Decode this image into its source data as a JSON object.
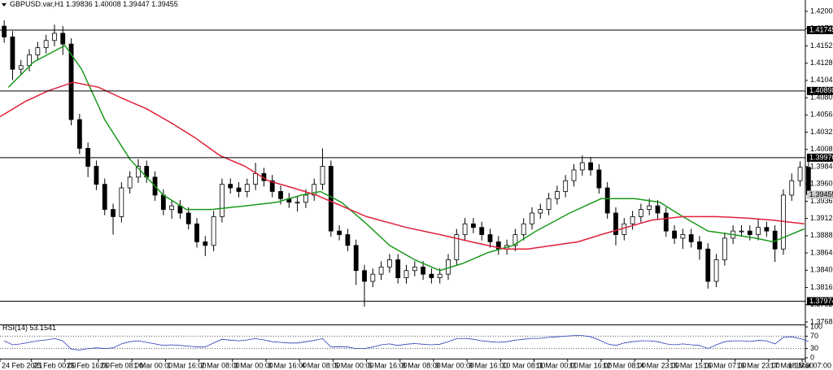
{
  "chart_data": {
    "type": "candlestick",
    "symbol": "GBPUSD.var,H1",
    "xlim": [
      -2,
      382.5
    ],
    "xticks": [
      {
        "value": -2,
        "label": "24 Feb 2021"
      },
      {
        "value": 13,
        "label": "25 Feb 00:00"
      },
      {
        "value": 29,
        "label": "25 Feb 16:00"
      },
      {
        "value": 45,
        "label": "26 Feb 08:00"
      },
      {
        "value": 61,
        "label": "1 Mar 00:00"
      },
      {
        "value": 77,
        "label": "1 Mar 16:00"
      },
      {
        "value": 93,
        "label": "2 Mar 08:00"
      },
      {
        "value": 109,
        "label": "3 Mar 00:00"
      },
      {
        "value": 125,
        "label": "3 Mar 16:00"
      },
      {
        "value": 141,
        "label": "4 Mar 08:00"
      },
      {
        "value": 157,
        "label": "5 Mar 00:00"
      },
      {
        "value": 173,
        "label": "5 Mar 16:00"
      },
      {
        "value": 189,
        "label": "8 Mar 08:00"
      },
      {
        "value": 205,
        "label": "9 Mar 00:00"
      },
      {
        "value": 221,
        "label": "9 Mar 16:00"
      },
      {
        "value": 237,
        "label": "10 Mar 08:00"
      },
      {
        "value": 253,
        "label": "11 Mar 00:00"
      },
      {
        "value": 269,
        "label": "11 Mar 16:00"
      },
      {
        "value": 285,
        "label": "12 Mar 08:00"
      },
      {
        "value": 301,
        "label": "14 Mar 23:00"
      },
      {
        "value": 317,
        "label": "15 Mar 15:00"
      },
      {
        "value": 333,
        "label": "16 Mar 07:00"
      },
      {
        "value": 349,
        "label": "16 Mar 23:00"
      },
      {
        "value": 365,
        "label": "17 Mar 15:00"
      },
      {
        "value": 381,
        "label": "18 Mar 07:00"
      }
    ],
    "ylim": [
      1.37662,
      1.42163
    ],
    "yticks": [
      1.42005,
      1.41765,
      1.41525,
      1.41285,
      1.41045,
      1.40805,
      1.40565,
      1.40325,
      1.40085,
      1.39845,
      1.39605,
      1.39365,
      1.39125,
      1.38885,
      1.38645,
      1.38405,
      1.38165,
      1.37925,
      1.37685
    ],
    "x": [
      0,
      4,
      8,
      12,
      16,
      20,
      24,
      28,
      32,
      36,
      40,
      44,
      48,
      52,
      56,
      60,
      64,
      68,
      72,
      76,
      80,
      84,
      88,
      92,
      96,
      100,
      104,
      108,
      112,
      116,
      120,
      124,
      128,
      132,
      136,
      140,
      144,
      148,
      152,
      156,
      160,
      164,
      168,
      172,
      176,
      180,
      184,
      188,
      192,
      196,
      200,
      204,
      208,
      212,
      216,
      220,
      224,
      228,
      232,
      236,
      240,
      244,
      248,
      252,
      256,
      260,
      264,
      268,
      272,
      276,
      280,
      284,
      288,
      292,
      296,
      300,
      304,
      308,
      312,
      316,
      320,
      324,
      328,
      332,
      336,
      340,
      344,
      348,
      352,
      356,
      360,
      364,
      368,
      372,
      376,
      380,
      384
    ],
    "open": [
      1.418,
      1.4165,
      1.412,
      1.4125,
      1.414,
      1.415,
      1.416,
      1.417,
      1.4155,
      1.405,
      1.401,
      1.3985,
      1.396,
      1.3925,
      1.3915,
      1.3955,
      1.397,
      1.3985,
      1.397,
      1.3945,
      1.3925,
      1.393,
      1.392,
      1.3905,
      1.388,
      1.3875,
      1.3915,
      1.396,
      1.3955,
      1.395,
      1.396,
      1.3975,
      1.3965,
      1.395,
      1.394,
      1.3935,
      1.3935,
      1.3945,
      1.396,
      1.3985,
      1.3895,
      1.389,
      1.3875,
      1.384,
      1.3825,
      1.3835,
      1.3845,
      1.3855,
      1.383,
      1.384,
      1.3845,
      1.3835,
      1.383,
      1.3835,
      1.3855,
      1.389,
      1.3905,
      1.39,
      1.389,
      1.388,
      1.387,
      1.3875,
      1.389,
      1.3905,
      1.392,
      1.3925,
      1.394,
      1.395,
      1.3965,
      1.398,
      1.399,
      1.398,
      1.3955,
      1.392,
      1.389,
      1.3905,
      1.3915,
      1.3925,
      1.393,
      1.392,
      1.3895,
      1.3885,
      1.389,
      1.388,
      1.387,
      1.3825,
      1.3855,
      1.3885,
      1.3895,
      1.3895,
      1.389,
      1.39,
      1.3895,
      1.387,
      1.3945,
      1.3965,
      1.39836
    ],
    "high": [
      1.4188,
      1.4173,
      1.4133,
      1.4148,
      1.4158,
      1.4168,
      1.4182,
      1.418,
      1.4163,
      1.4058,
      1.4018,
      1.3993,
      1.3968,
      1.3933,
      1.3963,
      1.3978,
      1.3995,
      1.3993,
      1.3978,
      1.3953,
      1.3938,
      1.3938,
      1.3928,
      1.3913,
      1.3888,
      1.3923,
      1.3968,
      1.3968,
      1.3963,
      1.3968,
      1.399,
      1.3983,
      1.3973,
      1.3958,
      1.3948,
      1.3943,
      1.3953,
      1.3968,
      1.401,
      1.3993,
      1.3903,
      1.3898,
      1.3883,
      1.3848,
      1.3843,
      1.3853,
      1.3863,
      1.3863,
      1.3848,
      1.3853,
      1.3853,
      1.3843,
      1.3843,
      1.3863,
      1.3898,
      1.3913,
      1.3913,
      1.3908,
      1.3898,
      1.3888,
      1.3883,
      1.3898,
      1.3913,
      1.3928,
      1.3933,
      1.3948,
      1.3958,
      1.3973,
      1.3988,
      1.4,
      1.3998,
      1.3988,
      1.3963,
      1.3928,
      1.3913,
      1.3923,
      1.3933,
      1.394,
      1.3938,
      1.3928,
      1.3903,
      1.3898,
      1.3898,
      1.3888,
      1.3878,
      1.3863,
      1.3893,
      1.3903,
      1.3903,
      1.3903,
      1.3912,
      1.3908,
      1.3903,
      1.3953,
      1.3975,
      1.3992,
      1.40008
    ],
    "low": [
      1.4157,
      1.4105,
      1.4112,
      1.4117,
      1.4132,
      1.4142,
      1.4152,
      1.414,
      1.4042,
      1.4002,
      1.397,
      1.3952,
      1.3917,
      1.389,
      1.3907,
      1.3947,
      1.3962,
      1.3962,
      1.3937,
      1.3917,
      1.3912,
      1.3912,
      1.3897,
      1.3872,
      1.386,
      1.3867,
      1.3907,
      1.3947,
      1.3942,
      1.3942,
      1.3952,
      1.3957,
      1.3942,
      1.3932,
      1.3927,
      1.3922,
      1.3927,
      1.3937,
      1.3952,
      1.3887,
      1.3882,
      1.3867,
      1.382,
      1.379,
      1.3817,
      1.3827,
      1.3837,
      1.3822,
      1.3822,
      1.3832,
      1.3827,
      1.3822,
      1.3822,
      1.3827,
      1.3847,
      1.3882,
      1.3892,
      1.3882,
      1.3872,
      1.3862,
      1.3862,
      1.3867,
      1.3882,
      1.3897,
      1.3912,
      1.3917,
      1.3932,
      1.3942,
      1.3957,
      1.3972,
      1.3972,
      1.3947,
      1.3912,
      1.3875,
      1.3882,
      1.3897,
      1.3907,
      1.3917,
      1.3912,
      1.3887,
      1.3877,
      1.387,
      1.3872,
      1.3855,
      1.3815,
      1.3817,
      1.3847,
      1.3877,
      1.3887,
      1.3882,
      1.3882,
      1.3887,
      1.3852,
      1.3862,
      1.3937,
      1.3957,
      1.39447
    ],
    "close": [
      1.4165,
      1.412,
      1.4125,
      1.414,
      1.415,
      1.416,
      1.417,
      1.4155,
      1.405,
      1.401,
      1.3985,
      1.396,
      1.3925,
      1.3915,
      1.3955,
      1.397,
      1.3985,
      1.397,
      1.3945,
      1.3925,
      1.393,
      1.392,
      1.3905,
      1.388,
      1.3875,
      1.3915,
      1.396,
      1.3955,
      1.395,
      1.396,
      1.3975,
      1.3965,
      1.395,
      1.394,
      1.3935,
      1.3935,
      1.3945,
      1.396,
      1.3985,
      1.3895,
      1.389,
      1.3875,
      1.384,
      1.3825,
      1.3835,
      1.3845,
      1.3855,
      1.383,
      1.384,
      1.3845,
      1.3835,
      1.383,
      1.3835,
      1.3855,
      1.389,
      1.3905,
      1.39,
      1.389,
      1.388,
      1.387,
      1.3875,
      1.389,
      1.3905,
      1.392,
      1.3925,
      1.394,
      1.395,
      1.3965,
      1.398,
      1.399,
      1.398,
      1.3955,
      1.392,
      1.389,
      1.3905,
      1.3915,
      1.3925,
      1.393,
      1.392,
      1.3895,
      1.3885,
      1.389,
      1.388,
      1.387,
      1.3825,
      1.3855,
      1.3885,
      1.3895,
      1.3895,
      1.389,
      1.39,
      1.3895,
      1.387,
      1.3945,
      1.3965,
      1.39836,
      1.39455
    ],
    "up_color": "#ffffff",
    "down_color": "#000000",
    "moving_averages": [
      {
        "color": "#1a9a1a",
        "x": [
          2,
          14,
          29,
          37,
          48,
          60,
          76,
          87,
          99,
          115,
          130,
          142,
          151,
          161,
          173,
          184,
          196,
          208,
          219,
          231,
          243,
          254,
          270,
          285,
          301,
          313,
          324,
          336,
          348,
          359,
          367,
          382
        ],
        "values": [
          1.4095,
          1.413,
          1.4153,
          1.412,
          1.405,
          1.3995,
          1.3945,
          1.3925,
          1.3925,
          1.393,
          1.3935,
          1.3945,
          1.395,
          1.3935,
          1.3905,
          1.3875,
          1.3855,
          1.384,
          1.385,
          1.3865,
          1.3875,
          1.3895,
          1.392,
          1.394,
          1.394,
          1.3935,
          1.3915,
          1.3895,
          1.389,
          1.3885,
          1.388,
          1.3898
        ]
      },
      {
        "color": "#e0203a",
        "x": [
          -2,
          10,
          21,
          33,
          45,
          56,
          68,
          80,
          91,
          103,
          115,
          126,
          138,
          149,
          161,
          173,
          192,
          208,
          223,
          239,
          250,
          262,
          274,
          285,
          297,
          309,
          324,
          340,
          355,
          367,
          382
        ],
        "values": [
          1.4054,
          1.4075,
          1.409,
          1.4102,
          1.4095,
          1.408,
          1.4065,
          1.4045,
          1.4025,
          1.4,
          1.3985,
          1.3965,
          1.3955,
          1.3945,
          1.393,
          1.3915,
          1.39,
          1.389,
          1.388,
          1.387,
          1.387,
          1.3875,
          1.388,
          1.389,
          1.39,
          1.391,
          1.3915,
          1.3915,
          1.3913,
          1.391,
          1.3905
        ]
      }
    ],
    "levels": [
      1.41745,
      1.40898,
      {
        "value": 1.3997,
        "label": "1.39970"
      },
      1.37974
    ],
    "rsi": {
      "name": "RSI(14)",
      "color": "#2b3bb8",
      "ylim": [
        0,
        100
      ],
      "yticks": [
        100,
        70,
        30,
        0
      ],
      "values": [
        55,
        42,
        45,
        50,
        55,
        58,
        62,
        55,
        28,
        25,
        30,
        32,
        30,
        32,
        45,
        52,
        55,
        50,
        45,
        40,
        42,
        40,
        38,
        35,
        35,
        48,
        60,
        57,
        55,
        58,
        62,
        58,
        52,
        50,
        48,
        48,
        52,
        56,
        62,
        35,
        36,
        35,
        30,
        30,
        35,
        42,
        45,
        40,
        44,
        46,
        44,
        42,
        44,
        52,
        62,
        63,
        60,
        55,
        52,
        50,
        52,
        57,
        60,
        63,
        63,
        66,
        68,
        70,
        72,
        72,
        68,
        58,
        45,
        40,
        48,
        52,
        55,
        55,
        52,
        45,
        42,
        45,
        42,
        40,
        30,
        42,
        52,
        55,
        55,
        53,
        56,
        55,
        45,
        66,
        68,
        62,
        53.1541
      ]
    }
  }
}
